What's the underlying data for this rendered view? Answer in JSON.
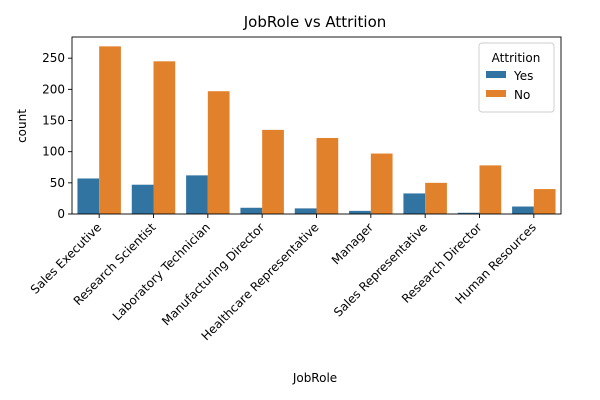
{
  "chart_data": {
    "type": "bar",
    "title": "JobRole vs Attrition",
    "xlabel": "JobRole",
    "ylabel": "count",
    "categories": [
      "Sales Executive",
      "Research Scientist",
      "Laboratory Technician",
      "Manufacturing Director",
      "Healthcare Representative",
      "Manager",
      "Sales Representative",
      "Research Director",
      "Human Resources"
    ],
    "series": [
      {
        "name": "Yes",
        "color": "#3274a1",
        "values": [
          57,
          47,
          62,
          10,
          9,
          5,
          33,
          2,
          12
        ]
      },
      {
        "name": "No",
        "color": "#e1812c",
        "values": [
          269,
          245,
          197,
          135,
          122,
          97,
          50,
          78,
          40
        ]
      }
    ],
    "ylim": [
      0,
      284
    ],
    "yticks": [
      0,
      50,
      100,
      150,
      200,
      250
    ],
    "legend": {
      "title": "Attrition",
      "position": "top-right"
    },
    "grid": false
  }
}
